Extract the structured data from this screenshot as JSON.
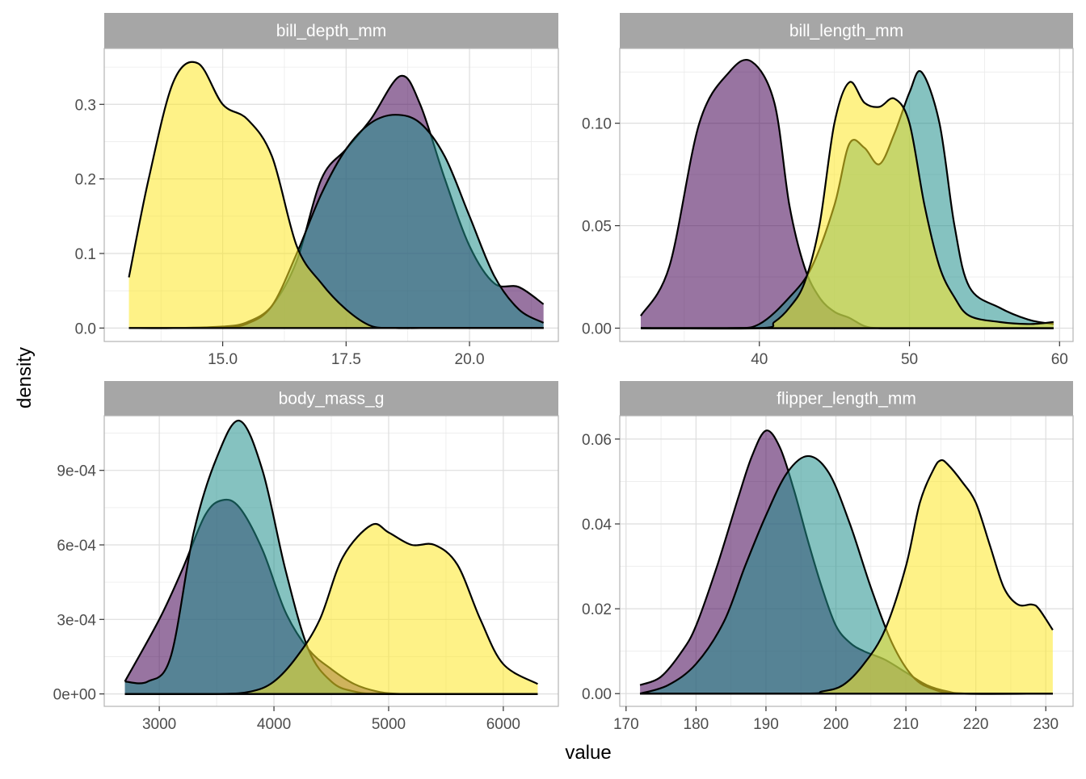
{
  "axis_titles": {
    "x": "value",
    "y": "density"
  },
  "colors": {
    "grid": "#ebebeb",
    "panel_border": "#b3b3b3",
    "strip_bg": "#a6a6a6",
    "strip_text": "#ffffff",
    "outline": "#000000",
    "group_colors": [
      "#440154",
      "#21908C",
      "#FDE725"
    ]
  },
  "chart_data": [
    {
      "type": "area",
      "title": "bill_depth_mm",
      "xlim": [
        12.6,
        21.8
      ],
      "ylim": [
        -0.018,
        0.375
      ],
      "x_ticks": [
        15,
        17.5,
        20
      ],
      "x_tick_labels": [
        "15.0",
        "17.5",
        "20.0"
      ],
      "y_ticks": [
        0,
        0.1,
        0.2,
        0.3
      ],
      "y_tick_labels": [
        "0.0",
        "0.1",
        "0.2",
        "0.3"
      ],
      "series": [
        {
          "color": "#440154",
          "x": [
            13.1,
            14.0,
            15.0,
            15.5,
            16.0,
            16.5,
            17.0,
            17.5,
            18.0,
            18.6,
            19.0,
            19.5,
            20.0,
            20.5,
            21.0,
            21.5
          ],
          "y": [
            0,
            0,
            0.002,
            0.008,
            0.03,
            0.09,
            0.2,
            0.24,
            0.28,
            0.338,
            0.3,
            0.2,
            0.11,
            0.06,
            0.055,
            0.032
          ]
        },
        {
          "color": "#21908C",
          "x": [
            13.1,
            14.0,
            15.0,
            15.5,
            16.0,
            16.5,
            17.0,
            17.5,
            18.0,
            18.5,
            19.0,
            19.5,
            20.0,
            20.5,
            21.0,
            21.5
          ],
          "y": [
            0,
            0,
            0.001,
            0.006,
            0.03,
            0.1,
            0.18,
            0.24,
            0.275,
            0.286,
            0.275,
            0.23,
            0.15,
            0.07,
            0.025,
            0.007
          ]
        },
        {
          "color": "#FDE725",
          "x": [
            13.1,
            13.5,
            14.0,
            14.5,
            15.0,
            15.5,
            16.0,
            16.5,
            17.0,
            17.5,
            18.0,
            18.5,
            19.0,
            20.0,
            21.5
          ],
          "y": [
            0.068,
            0.2,
            0.33,
            0.355,
            0.3,
            0.28,
            0.23,
            0.11,
            0.06,
            0.025,
            0.003,
            0,
            0,
            0,
            0
          ]
        }
      ]
    },
    {
      "type": "area",
      "title": "bill_length_mm",
      "xlim": [
        30.7,
        60.9
      ],
      "ylim": [
        -0.0065,
        0.1365
      ],
      "x_ticks": [
        40,
        50,
        60
      ],
      "x_tick_labels": [
        "40",
        "50",
        "60"
      ],
      "y_ticks": [
        0,
        0.05,
        0.1
      ],
      "y_tick_labels": [
        "0.00",
        "0.05",
        "0.10"
      ],
      "series": [
        {
          "color": "#440154",
          "x": [
            32.1,
            34,
            36,
            38,
            39.5,
            41,
            42,
            43,
            44,
            45,
            46,
            47,
            48,
            50,
            59.6
          ],
          "y": [
            0.006,
            0.03,
            0.1,
            0.125,
            0.13,
            0.11,
            0.06,
            0.03,
            0.015,
            0.008,
            0.005,
            0.001,
            0,
            0,
            0
          ]
        },
        {
          "color": "#21908C",
          "x": [
            32.1,
            38,
            40,
            42,
            43.5,
            45,
            46,
            47,
            48,
            49,
            50,
            50.8,
            52,
            53,
            54,
            56,
            58,
            59.6
          ],
          "y": [
            0,
            0,
            0.002,
            0.015,
            0.03,
            0.06,
            0.09,
            0.088,
            0.08,
            0.095,
            0.115,
            0.125,
            0.1,
            0.05,
            0.02,
            0.01,
            0.004,
            0.002
          ]
        },
        {
          "color": "#FDE725",
          "x": [
            32.1,
            40,
            41,
            42,
            43,
            44,
            45,
            46,
            47,
            48,
            49,
            50,
            51,
            52,
            53,
            54,
            56,
            58,
            59.6
          ],
          "y": [
            0,
            0,
            0.003,
            0.01,
            0.022,
            0.05,
            0.1,
            0.12,
            0.11,
            0.108,
            0.112,
            0.1,
            0.06,
            0.03,
            0.015,
            0.006,
            0.003,
            0.002,
            0.003
          ]
        }
      ]
    },
    {
      "type": "area",
      "title": "body_mass_g",
      "xlim": [
        2520,
        6480
      ],
      "ylim": [
        -5e-05,
        0.00112
      ],
      "x_ticks": [
        3000,
        4000,
        5000,
        6000
      ],
      "x_tick_labels": [
        "3000",
        "4000",
        "5000",
        "6000"
      ],
      "y_ticks": [
        0,
        0.0003,
        0.0006,
        0.0009
      ],
      "y_tick_labels": [
        "0e+00",
        "3e-04",
        "6e-04",
        "9e-04"
      ],
      "series": [
        {
          "color": "#440154",
          "x": [
            2700,
            3000,
            3200,
            3400,
            3550,
            3700,
            3900,
            4100,
            4300,
            4500,
            4700,
            4900,
            5100,
            5500,
            6300
          ],
          "y": [
            5e-05,
            0.0003,
            0.0005,
            0.00072,
            0.00078,
            0.00075,
            0.00058,
            0.00033,
            0.00018,
            0.0001,
            4e-05,
            1e-05,
            0,
            0,
            0
          ]
        },
        {
          "color": "#21908C",
          "x": [
            2700,
            2900,
            3100,
            3300,
            3500,
            3700,
            3900,
            4100,
            4300,
            4500,
            4700,
            5000,
            6300
          ],
          "y": [
            5e-05,
            5e-05,
            0.00015,
            0.00065,
            0.00095,
            0.0011,
            0.0009,
            0.0005,
            0.00018,
            5e-05,
            1e-05,
            0,
            0
          ]
        },
        {
          "color": "#FDE725",
          "x": [
            2700,
            3500,
            3800,
            4000,
            4200,
            4400,
            4600,
            4850,
            5000,
            5200,
            5400,
            5600,
            5800,
            6000,
            6300
          ],
          "y": [
            0,
            0,
            1e-05,
            5e-05,
            0.00015,
            0.0003,
            0.00055,
            0.00068,
            0.00065,
            0.0006,
            0.0006,
            0.00052,
            0.0003,
            0.00012,
            4e-05
          ]
        }
      ]
    },
    {
      "type": "area",
      "title": "flipper_length_mm",
      "xlim": [
        169.1,
        233.9
      ],
      "ylim": [
        -0.003,
        0.0655
      ],
      "x_ticks": [
        170,
        180,
        190,
        200,
        210,
        220,
        230
      ],
      "x_tick_labels": [
        "170",
        "180",
        "190",
        "200",
        "210",
        "220",
        "230"
      ],
      "y_ticks": [
        0,
        0.02,
        0.04,
        0.06
      ],
      "y_tick_labels": [
        "0.00",
        "0.02",
        "0.04",
        "0.06"
      ],
      "series": [
        {
          "color": "#440154",
          "x": [
            172,
            175,
            178,
            180,
            183,
            186,
            188,
            190,
            192,
            194,
            196,
            198,
            200,
            202,
            204,
            207,
            210,
            213,
            216,
            219,
            231
          ],
          "y": [
            0.002,
            0.004,
            0.01,
            0.016,
            0.03,
            0.046,
            0.056,
            0.062,
            0.058,
            0.048,
            0.036,
            0.025,
            0.016,
            0.012,
            0.01,
            0.008,
            0.005,
            0.002,
            0.0005,
            0,
            0
          ]
        },
        {
          "color": "#21908C",
          "x": [
            172,
            176,
            180,
            184,
            187,
            190,
            193,
            196,
            199,
            202,
            205,
            208,
            211,
            214,
            218,
            231
          ],
          "y": [
            0,
            0.002,
            0.007,
            0.017,
            0.03,
            0.042,
            0.052,
            0.056,
            0.052,
            0.04,
            0.025,
            0.012,
            0.004,
            0.001,
            0,
            0
          ]
        },
        {
          "color": "#FDE725",
          "x": [
            172,
            195,
            198,
            201,
            204,
            207,
            210,
            212,
            214,
            215,
            216,
            218,
            220,
            222,
            224,
            226,
            228,
            229,
            231
          ],
          "y": [
            0,
            0,
            0.0005,
            0.002,
            0.007,
            0.015,
            0.03,
            0.045,
            0.053,
            0.055,
            0.054,
            0.05,
            0.045,
            0.035,
            0.025,
            0.021,
            0.021,
            0.02,
            0.015
          ]
        }
      ]
    }
  ]
}
